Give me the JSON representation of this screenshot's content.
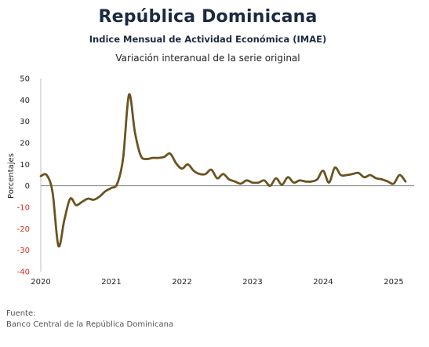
{
  "header": {
    "title": "República Dominicana",
    "subtitle": "Indice Mensual de Actividad Económica (IMAE)",
    "description": "Variación interanual de la serie original"
  },
  "footer": {
    "source_label": "Fuente:",
    "source_name": "Banco Central de la República Dominicana"
  },
  "colors": {
    "line": "#6b5320",
    "negative_tick": "#e0301e",
    "positive_tick": "#222222",
    "zero_line": "#7f7f7f"
  },
  "chart_data": {
    "type": "line",
    "ylabel": "Porcentajes",
    "ylim": [
      -40,
      50
    ],
    "yticks": [
      50,
      40,
      30,
      20,
      10,
      0,
      -10,
      -20,
      -30,
      -40
    ],
    "xticks": [
      "2020",
      "2021",
      "2022",
      "2023",
      "2024",
      "2025"
    ],
    "grid": false,
    "series": [
      {
        "points": [
          [
            "2020-01",
            4.5
          ],
          [
            "2020-02",
            5.0
          ],
          [
            "2020-03",
            -3.0
          ],
          [
            "2020-04",
            -28.0
          ],
          [
            "2020-05",
            -16.0
          ],
          [
            "2020-06",
            -6.0
          ],
          [
            "2020-07",
            -9.0
          ],
          [
            "2020-08",
            -7.5
          ],
          [
            "2020-09",
            -6.0
          ],
          [
            "2020-10",
            -6.5
          ],
          [
            "2020-11",
            -5.0
          ],
          [
            "2020-12",
            -2.5
          ],
          [
            "2021-01",
            -1.0
          ],
          [
            "2021-02",
            1.0
          ],
          [
            "2021-03",
            13.0
          ],
          [
            "2021-04",
            42.5
          ],
          [
            "2021-05",
            25.0
          ],
          [
            "2021-06",
            14.0
          ],
          [
            "2021-07",
            12.5
          ],
          [
            "2021-08",
            13.0
          ],
          [
            "2021-09",
            13.0
          ],
          [
            "2021-10",
            13.5
          ],
          [
            "2021-11",
            15.0
          ],
          [
            "2021-12",
            10.5
          ],
          [
            "2022-01",
            8.0
          ],
          [
            "2022-02",
            10.0
          ],
          [
            "2022-03",
            7.0
          ],
          [
            "2022-04",
            5.5
          ],
          [
            "2022-05",
            5.5
          ],
          [
            "2022-06",
            7.5
          ],
          [
            "2022-07",
            3.5
          ],
          [
            "2022-08",
            5.5
          ],
          [
            "2022-09",
            3.0
          ],
          [
            "2022-10",
            2.0
          ],
          [
            "2022-11",
            1.0
          ],
          [
            "2022-12",
            2.5
          ],
          [
            "2023-01",
            1.5
          ],
          [
            "2023-02",
            1.5
          ],
          [
            "2023-03",
            2.5
          ],
          [
            "2023-04",
            0.0
          ],
          [
            "2023-05",
            3.5
          ],
          [
            "2023-06",
            0.5
          ],
          [
            "2023-07",
            4.0
          ],
          [
            "2023-08",
            1.5
          ],
          [
            "2023-09",
            2.5
          ],
          [
            "2023-10",
            2.0
          ],
          [
            "2023-11",
            2.0
          ],
          [
            "2023-12",
            3.0
          ],
          [
            "2024-01",
            7.0
          ],
          [
            "2024-02",
            1.5
          ],
          [
            "2024-03",
            8.5
          ],
          [
            "2024-04",
            5.0
          ],
          [
            "2024-05",
            5.0
          ],
          [
            "2024-06",
            5.5
          ],
          [
            "2024-07",
            6.0
          ],
          [
            "2024-08",
            4.0
          ],
          [
            "2024-09",
            5.0
          ],
          [
            "2024-10",
            3.5
          ],
          [
            "2024-11",
            3.0
          ],
          [
            "2024-12",
            2.0
          ],
          [
            "2025-01",
            1.0
          ],
          [
            "2025-02",
            5.0
          ],
          [
            "2025-03",
            2.0
          ]
        ]
      }
    ]
  }
}
